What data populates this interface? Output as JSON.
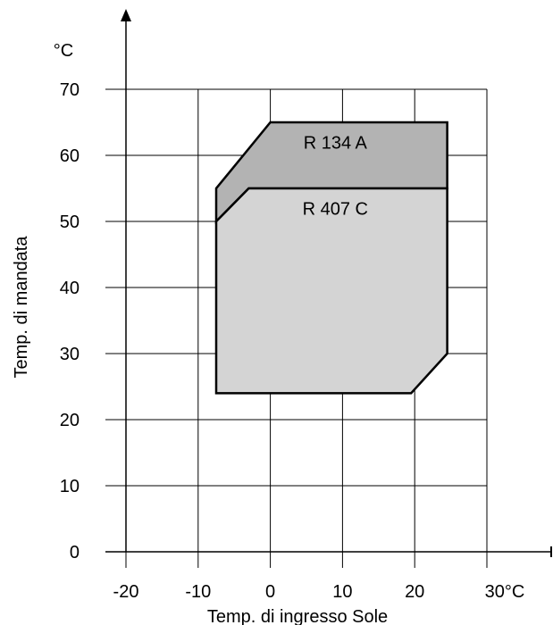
{
  "chart_data": {
    "type": "area",
    "xlabel": "Temp. di ingresso Sole",
    "ylabel": "Temp. di mandata",
    "y_unit_label": "°C",
    "x_ticks": [
      {
        "value": -20,
        "label": "-20"
      },
      {
        "value": -10,
        "label": "-10"
      },
      {
        "value": 0,
        "label": "0"
      },
      {
        "value": 10,
        "label": "10"
      },
      {
        "value": 20,
        "label": "20"
      },
      {
        "value": 30,
        "label": "30°C"
      }
    ],
    "y_ticks": [
      {
        "value": 0,
        "label": "0"
      },
      {
        "value": 10,
        "label": "10"
      },
      {
        "value": 20,
        "label": "20"
      },
      {
        "value": 30,
        "label": "30"
      },
      {
        "value": 40,
        "label": "40"
      },
      {
        "value": 50,
        "label": "50"
      },
      {
        "value": 60,
        "label": "60"
      },
      {
        "value": 70,
        "label": "70"
      }
    ],
    "xlim": [
      -20,
      30
    ],
    "ylim": [
      0,
      70
    ],
    "grid": true,
    "series": [
      {
        "name": "R 134 A",
        "color": "#b3b3b3",
        "label_at": [
          9,
          61
        ],
        "polygon": [
          [
            -7.5,
            55
          ],
          [
            -7.5,
            50
          ],
          [
            -3,
            55
          ],
          [
            24.5,
            55
          ],
          [
            24.5,
            65
          ],
          [
            0,
            65
          ]
        ]
      },
      {
        "name": "R 407 C",
        "color": "#d4d4d4",
        "label_at": [
          9,
          51
        ],
        "polygon": [
          [
            -7.5,
            50
          ],
          [
            -3,
            55
          ],
          [
            24.5,
            55
          ],
          [
            24.5,
            30
          ],
          [
            19.5,
            24
          ],
          [
            -7.5,
            24
          ]
        ]
      }
    ]
  }
}
